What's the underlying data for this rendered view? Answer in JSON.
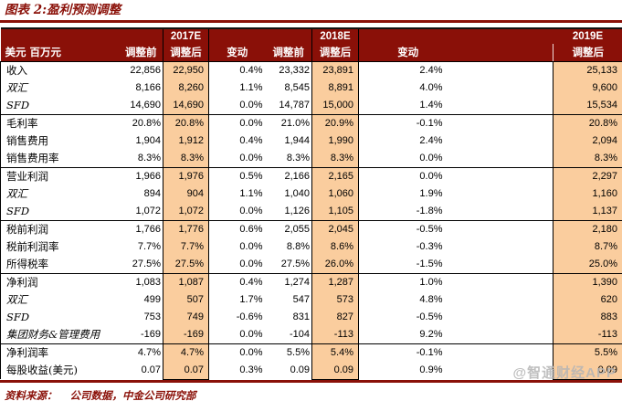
{
  "title": "图表 2:盈利预测调整",
  "colors": {
    "maroon": "#8A1008",
    "peach": "#FACD9E"
  },
  "table": {
    "unit_header": "美元 百万元",
    "year_groups": [
      {
        "year": "2017E",
        "cols": [
          "调整前",
          "调整后",
          "变动"
        ]
      },
      {
        "year": "2018E",
        "cols": [
          "调整前",
          "调整后",
          "变动"
        ]
      },
      {
        "year": "2019E",
        "cols": [
          "调整后"
        ]
      }
    ],
    "rows": [
      {
        "label": "收入",
        "italic": false,
        "section_start": false,
        "values": [
          "22,856",
          "22,950",
          "0.4%",
          "23,332",
          "23,891",
          "2.4%",
          "25,133"
        ]
      },
      {
        "label": "双汇",
        "italic": true,
        "section_start": false,
        "values": [
          "8,166",
          "8,260",
          "1.1%",
          "8,545",
          "8,891",
          "4.0%",
          "9,600"
        ]
      },
      {
        "label": "SFD",
        "italic": true,
        "section_start": false,
        "values": [
          "14,690",
          "14,690",
          "0.0%",
          "14,787",
          "15,000",
          "1.4%",
          "15,534"
        ]
      },
      {
        "label": "毛利率",
        "italic": false,
        "section_start": true,
        "values": [
          "20.8%",
          "20.8%",
          "0.0%",
          "21.0%",
          "20.9%",
          "-0.1%",
          "20.8%"
        ]
      },
      {
        "label": "销售费用",
        "italic": false,
        "section_start": false,
        "values": [
          "1,904",
          "1,912",
          "0.4%",
          "1,944",
          "1,990",
          "2.4%",
          "2,094"
        ]
      },
      {
        "label": "销售费用率",
        "italic": false,
        "section_start": false,
        "values": [
          "8.3%",
          "8.3%",
          "0.0%",
          "8.3%",
          "8.3%",
          "0.0%",
          "8.3%"
        ]
      },
      {
        "label": "营业利润",
        "italic": false,
        "section_start": true,
        "values": [
          "1,966",
          "1,976",
          "0.5%",
          "2,166",
          "2,165",
          "0.0%",
          "2,297"
        ]
      },
      {
        "label": "双汇",
        "italic": true,
        "section_start": false,
        "values": [
          "894",
          "904",
          "1.1%",
          "1,040",
          "1,060",
          "1.9%",
          "1,160"
        ]
      },
      {
        "label": "SFD",
        "italic": true,
        "section_start": false,
        "values": [
          "1,072",
          "1,072",
          "0.0%",
          "1,126",
          "1,105",
          "-1.8%",
          "1,137"
        ]
      },
      {
        "label": "税前利润",
        "italic": false,
        "section_start": true,
        "values": [
          "1,766",
          "1,776",
          "0.6%",
          "2,055",
          "2,045",
          "-0.5%",
          "2,180"
        ]
      },
      {
        "label": "税前利润率",
        "italic": false,
        "section_start": false,
        "values": [
          "7.7%",
          "7.7%",
          "0.0%",
          "8.8%",
          "8.6%",
          "-0.3%",
          "8.7%"
        ]
      },
      {
        "label": "所得税率",
        "italic": false,
        "section_start": false,
        "values": [
          "27.5%",
          "27.5%",
          "0.0%",
          "27.5%",
          "26.0%",
          "-1.5%",
          "25.0%"
        ]
      },
      {
        "label": "净利润",
        "italic": false,
        "section_start": true,
        "values": [
          "1,083",
          "1,087",
          "0.4%",
          "1,274",
          "1,287",
          "1.0%",
          "1,390"
        ]
      },
      {
        "label": "双汇",
        "italic": true,
        "section_start": false,
        "values": [
          "499",
          "507",
          "1.7%",
          "547",
          "573",
          "4.8%",
          "620"
        ]
      },
      {
        "label": "SFD",
        "italic": true,
        "section_start": false,
        "values": [
          "753",
          "749",
          "-0.6%",
          "831",
          "827",
          "-0.5%",
          "883"
        ]
      },
      {
        "label": "集团财务&管理费用",
        "italic": true,
        "section_start": false,
        "values": [
          "-169",
          "-169",
          "0.0%",
          "-104",
          "-113",
          "9.2%",
          "-113"
        ]
      },
      {
        "label": "净利润率",
        "italic": false,
        "section_start": true,
        "values": [
          "4.7%",
          "4.7%",
          "0.0%",
          "5.5%",
          "5.4%",
          "-0.1%",
          "5.5%"
        ]
      },
      {
        "label": "每股收益(美元)",
        "italic": false,
        "section_start": false,
        "values": [
          "0.07",
          "0.07",
          "0.3%",
          "0.09",
          "0.09",
          "0.9%",
          "0.09"
        ]
      }
    ]
  },
  "footer": {
    "source_label": "资料来源：",
    "source_text": "公司数据，中金公司研究部"
  },
  "watermark": "@智通财经APP"
}
